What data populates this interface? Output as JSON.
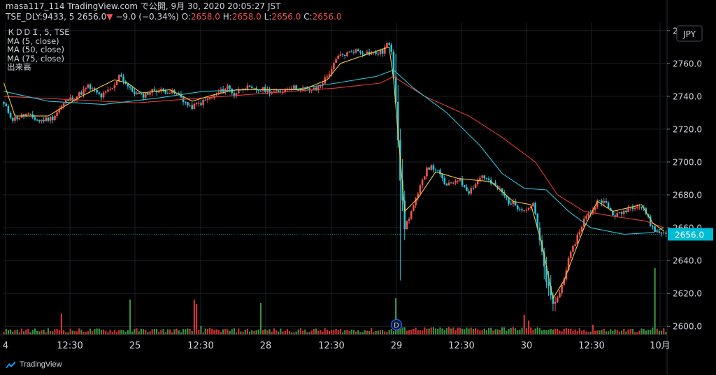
{
  "header": {
    "line1": "masa117_114 TradingView.com で公開, 9月 30, 2020 20:05:27 JST",
    "symbol": "TSE_DLY:9433, 5 2656.0",
    "arrow": "▼",
    "change": "−9.0 (−0.34%)",
    "o_label": "O:",
    "o_value": "2658.0",
    "h_label": "H:",
    "h_value": "2658.0",
    "l_label": "L:",
    "l_value": "2656.0",
    "c_label": "C:",
    "c_value": "2656.0"
  },
  "legend": {
    "symbol": "ＫＤＤＩ, 5, TSE",
    "ma5": "MA (5, close)",
    "ma50": "MA (50, close)",
    "ma75": "MA (75, close)",
    "volume": "出来高"
  },
  "currency": "JPY",
  "footer": {
    "brand": "TradingView"
  },
  "colors": {
    "up": "#ef5350",
    "down": "#26c6da",
    "vol_up": "#e53935",
    "vol_down": "#43a047",
    "ma5": "#f5c842",
    "ma50": "#26c6da",
    "ma75": "#e53935",
    "price_tag": "#00bcd4"
  },
  "chart_data": {
    "type": "candlestick",
    "title": "ＫＤＤＩ, 5, TSE",
    "ylim": [
      2595,
      2785
    ],
    "ytick_values": [
      2600,
      2620,
      2640,
      2660,
      2680,
      2700,
      2720,
      2740,
      2760,
      2780
    ],
    "ytick_labels": [
      "2600.0",
      "2620.0",
      "2640.0",
      "2660.0",
      "2680.0",
      "2700.0",
      "2720.0",
      "2740.0",
      "2760.0",
      "2780.0"
    ],
    "x_ticks": [
      "4",
      "12:30",
      "25",
      "12:30",
      "28",
      "12:30",
      "29",
      "12:30",
      "30",
      "12:30",
      "10月"
    ],
    "last_price": "2656.0",
    "series": [
      {
        "name": "MA (5, close)"
      },
      {
        "name": "MA (50, close)"
      },
      {
        "name": "MA (75, close)"
      },
      {
        "name": "出来高"
      }
    ],
    "dividend_marker": "D",
    "price_path": [
      [
        0,
        2735
      ],
      [
        4,
        2726
      ],
      [
        10,
        2729
      ],
      [
        16,
        2725
      ],
      [
        22,
        2727
      ],
      [
        28,
        2737
      ],
      [
        33,
        2740
      ],
      [
        38,
        2746
      ],
      [
        44,
        2740
      ],
      [
        50,
        2746
      ],
      [
        52,
        2754
      ],
      [
        57,
        2744
      ],
      [
        62,
        2740
      ],
      [
        68,
        2744
      ],
      [
        74,
        2743
      ],
      [
        79,
        2741
      ],
      [
        84,
        2733
      ],
      [
        89,
        2736
      ],
      [
        95,
        2740
      ],
      [
        101,
        2746
      ],
      [
        104,
        2741
      ],
      [
        108,
        2746
      ],
      [
        112,
        2744
      ],
      [
        118,
        2744
      ],
      [
        124,
        2742
      ],
      [
        129,
        2746
      ],
      [
        135,
        2744
      ],
      [
        141,
        2744
      ],
      [
        146,
        2752
      ],
      [
        151,
        2764
      ],
      [
        155,
        2766
      ],
      [
        158,
        2768
      ],
      [
        162,
        2767
      ],
      [
        167,
        2766
      ],
      [
        171,
        2767
      ],
      [
        173,
        2772
      ],
      [
        175,
        2768
      ],
      [
        177,
        2738
      ],
      [
        179,
        2690
      ],
      [
        181,
        2660
      ],
      [
        184,
        2670
      ],
      [
        187,
        2680
      ],
      [
        191,
        2697
      ],
      [
        195,
        2696
      ],
      [
        200,
        2685
      ],
      [
        205,
        2690
      ],
      [
        210,
        2682
      ],
      [
        216,
        2692
      ],
      [
        220,
        2687
      ],
      [
        224,
        2683
      ],
      [
        228,
        2676
      ],
      [
        232,
        2673
      ],
      [
        236,
        2671
      ],
      [
        239,
        2675
      ],
      [
        242,
        2652
      ],
      [
        245,
        2628
      ],
      [
        248,
        2613
      ],
      [
        251,
        2620
      ],
      [
        255,
        2640
      ],
      [
        259,
        2655
      ],
      [
        262,
        2665
      ],
      [
        266,
        2671
      ],
      [
        269,
        2678
      ],
      [
        272,
        2674
      ],
      [
        275,
        2668
      ],
      [
        278,
        2668
      ],
      [
        282,
        2672
      ],
      [
        286,
        2674
      ],
      [
        289,
        2672
      ],
      [
        292,
        2662
      ],
      [
        295,
        2657
      ],
      [
        298,
        2657
      ]
    ],
    "ma5": [
      [
        0,
        2748
      ],
      [
        5,
        2728
      ],
      [
        20,
        2728
      ],
      [
        35,
        2740
      ],
      [
        50,
        2750
      ],
      [
        56,
        2748
      ],
      [
        62,
        2742
      ],
      [
        75,
        2744
      ],
      [
        85,
        2737
      ],
      [
        95,
        2741
      ],
      [
        105,
        2744
      ],
      [
        120,
        2744
      ],
      [
        135,
        2744
      ],
      [
        146,
        2750
      ],
      [
        152,
        2760
      ],
      [
        165,
        2766
      ],
      [
        174,
        2770
      ],
      [
        176,
        2750
      ],
      [
        181,
        2670
      ],
      [
        187,
        2678
      ],
      [
        195,
        2694
      ],
      [
        205,
        2690
      ],
      [
        220,
        2688
      ],
      [
        230,
        2676
      ],
      [
        238,
        2674
      ],
      [
        243,
        2650
      ],
      [
        248,
        2617
      ],
      [
        253,
        2628
      ],
      [
        262,
        2660
      ],
      [
        268,
        2676
      ],
      [
        275,
        2670
      ],
      [
        288,
        2674
      ],
      [
        293,
        2663
      ],
      [
        298,
        2658
      ]
    ],
    "ma50": [
      [
        0,
        2743
      ],
      [
        20,
        2737
      ],
      [
        45,
        2735
      ],
      [
        70,
        2739
      ],
      [
        90,
        2743
      ],
      [
        110,
        2744
      ],
      [
        130,
        2744
      ],
      [
        150,
        2748
      ],
      [
        168,
        2752
      ],
      [
        176,
        2756
      ],
      [
        185,
        2745
      ],
      [
        200,
        2730
      ],
      [
        215,
        2710
      ],
      [
        225,
        2693
      ],
      [
        235,
        2684
      ],
      [
        245,
        2683
      ],
      [
        255,
        2670
      ],
      [
        265,
        2660
      ],
      [
        280,
        2656
      ],
      [
        293,
        2657
      ],
      [
        298,
        2660
      ]
    ],
    "ma75": [
      [
        0,
        2740
      ],
      [
        30,
        2738
      ],
      [
        60,
        2736
      ],
      [
        90,
        2739
      ],
      [
        120,
        2742
      ],
      [
        150,
        2745
      ],
      [
        170,
        2748
      ],
      [
        176,
        2752
      ],
      [
        190,
        2740
      ],
      [
        210,
        2728
      ],
      [
        225,
        2715
      ],
      [
        240,
        2700
      ],
      [
        250,
        2680
      ],
      [
        262,
        2670
      ],
      [
        275,
        2667
      ],
      [
        290,
        2664
      ],
      [
        298,
        2660
      ]
    ]
  }
}
